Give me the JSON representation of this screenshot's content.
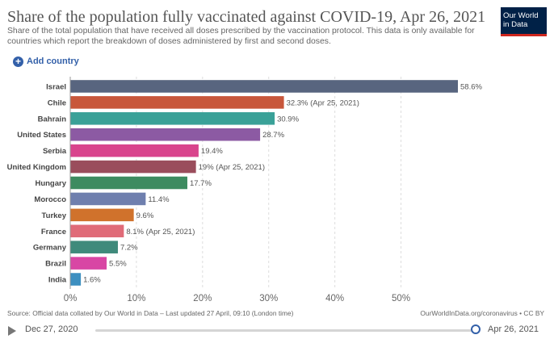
{
  "header": {
    "title": "Share of the population fully vaccinated against COVID-19, Apr 26, 2021",
    "subtitle": "Share of the total population that have received all doses prescribed by the vaccination protocol. This data is only available for countries which report the breakdown of doses administered by first and second doses.",
    "logo_line1": "Our World",
    "logo_line2": "in Data"
  },
  "controls": {
    "add_country_label": "Add country",
    "add_icon": "plus-circle-icon"
  },
  "footer": {
    "source": "Source: Official data collated by Our World in Data – Last updated 27 April, 09:10 (London time)",
    "license": "OurWorldInData.org/coronavirus • CC BY"
  },
  "timeline": {
    "play_icon": "play-icon",
    "start_date": "Dec 27, 2020",
    "end_date": "Apr 26, 2021",
    "position_fraction": 1.0
  },
  "chart_data": {
    "type": "bar",
    "orientation": "horizontal",
    "xlim": [
      0,
      58.6
    ],
    "x_ticks": [
      0,
      10,
      20,
      30,
      40,
      50
    ],
    "x_tick_labels": [
      "0%",
      "10%",
      "20%",
      "30%",
      "40%",
      "50%"
    ],
    "grid": true,
    "categories": [
      "Israel",
      "Chile",
      "Bahrain",
      "United States",
      "Serbia",
      "United Kingdom",
      "Hungary",
      "Morocco",
      "Turkey",
      "France",
      "Germany",
      "Brazil",
      "India"
    ],
    "values": [
      58.6,
      32.3,
      30.9,
      28.7,
      19.4,
      19,
      17.7,
      11.4,
      9.6,
      8.1,
      7.2,
      5.5,
      1.6
    ],
    "value_labels": [
      "58.6%",
      "32.3% (Apr 25, 2021)",
      "30.9%",
      "28.7%",
      "19.4%",
      "19% (Apr 25, 2021)",
      "17.7%",
      "11.4%",
      "9.6%",
      "8.1% (Apr 25, 2021)",
      "7.2%",
      "5.5%",
      "1.6%"
    ],
    "colors": [
      "#58657f",
      "#c8573b",
      "#3aa198",
      "#8c5aa3",
      "#d9448d",
      "#9a4d5c",
      "#3d8b60",
      "#6f7fae",
      "#d0722c",
      "#e06b78",
      "#3f8a7b",
      "#d846a4",
      "#3d8fc0"
    ]
  }
}
